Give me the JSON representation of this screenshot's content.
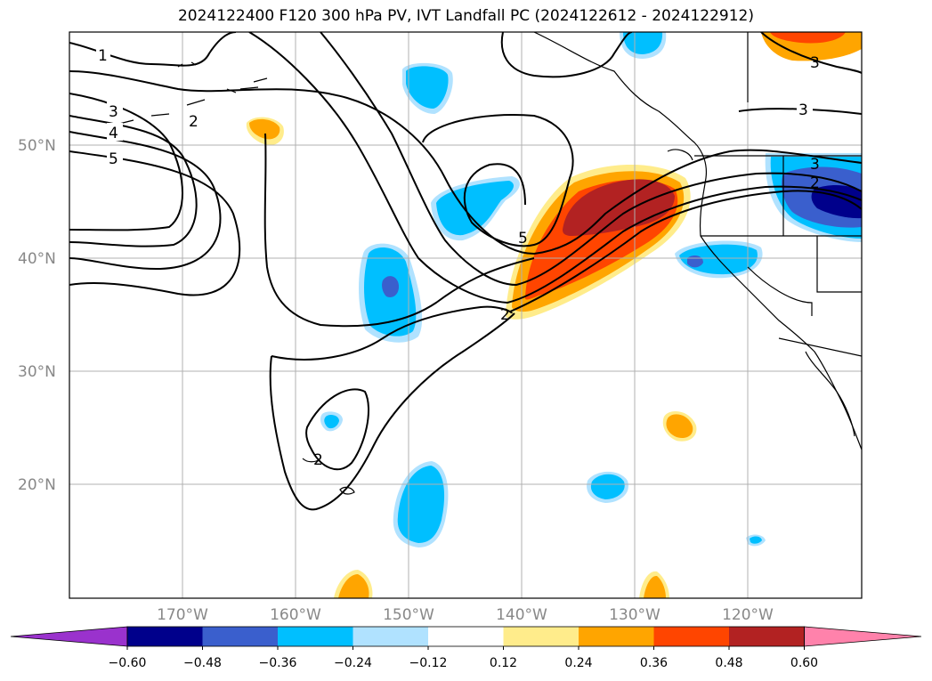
{
  "title": "2024122400 F120 300 hPa PV, IVT Landfall PC (2024122612 - 2024122912)",
  "lat_labels": [
    "50°N",
    "40°N",
    "30°N",
    "20°N"
  ],
  "lon_labels": [
    "170°W",
    "160°W",
    "150°W",
    "140°W",
    "130°W",
    "120°W"
  ],
  "colorbar": {
    "tick_labels": [
      "−0.60",
      "−0.48",
      "−0.36",
      "−0.24",
      "−0.12",
      "0.12",
      "0.24",
      "0.36",
      "0.48",
      "0.60"
    ],
    "colors": [
      "#9a32cd",
      "#00008b",
      "#3a5fcd",
      "#00bfff",
      "#b0e2ff",
      "#ffffff",
      "#ffec8b",
      "#ffa500",
      "#ff4500",
      "#b22222",
      "#ff82ab"
    ]
  },
  "contour_labels": [
    "1",
    "2",
    "3",
    "3",
    "4",
    "5",
    "5",
    "2",
    "2",
    "3",
    "3",
    "2"
  ]
}
